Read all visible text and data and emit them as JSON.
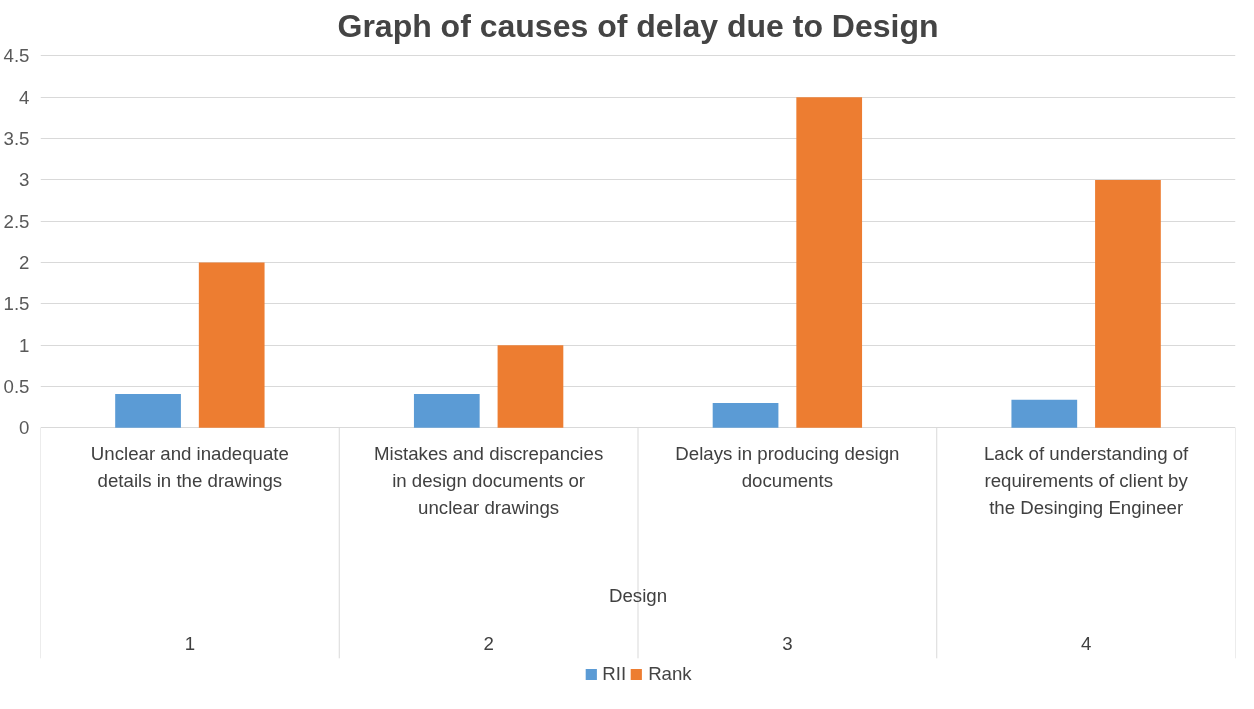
{
  "chart_data": {
    "type": "bar",
    "title": "Graph of causes of delay due to Design",
    "categories": [
      "Unclear and inadequate details in the drawings",
      "Mistakes and discrepancies in design documents or unclear drawings",
      "Delays in producing design documents",
      "Lack of understanding of requirements of client by the Desinging Engineer"
    ],
    "series": [
      {
        "name": "RII",
        "color": "#5b9bd5",
        "values": [
          0.41,
          0.41,
          0.3,
          0.34
        ]
      },
      {
        "name": "Rank",
        "color": "#ed7d31",
        "values": [
          2,
          1,
          4,
          3
        ]
      }
    ],
    "ylim": [
      0,
      4.5
    ],
    "yticks": [
      0,
      0.5,
      1,
      1.5,
      2,
      2.5,
      3,
      3.5,
      4,
      4.5
    ],
    "grid": "y",
    "legend": "bottom",
    "annotations": [
      "Design",
      "1",
      "2",
      "3",
      "4"
    ]
  }
}
